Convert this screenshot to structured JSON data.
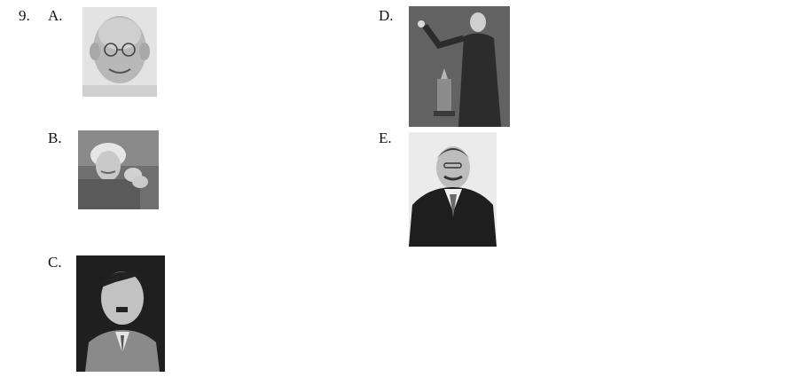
{
  "question": {
    "number": "9."
  },
  "options": [
    {
      "letter": "A.",
      "photo_icon": "portrait-photo-icon"
    },
    {
      "letter": "B.",
      "photo_icon": "portrait-photo-icon"
    },
    {
      "letter": "C.",
      "photo_icon": "portrait-photo-icon"
    },
    {
      "letter": "D.",
      "photo_icon": "portrait-photo-icon"
    },
    {
      "letter": "E.",
      "photo_icon": "portrait-photo-icon"
    }
  ]
}
